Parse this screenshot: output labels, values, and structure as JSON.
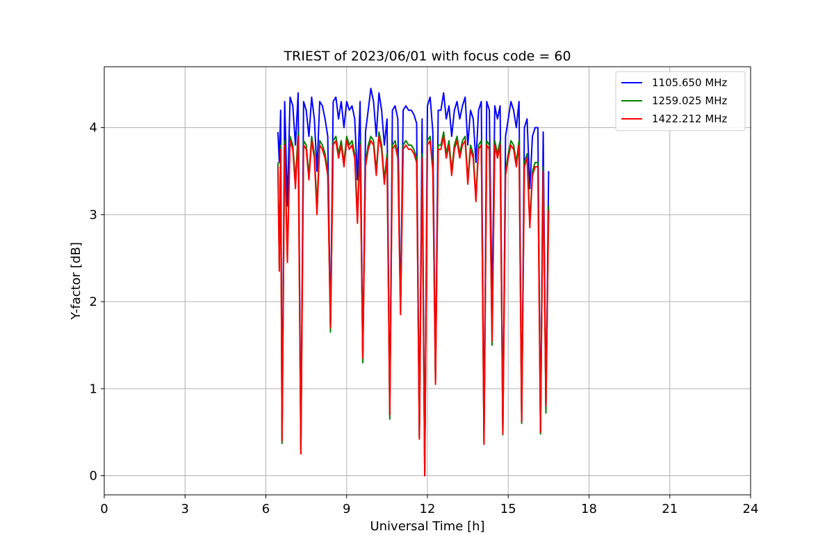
{
  "chart_data": {
    "type": "line",
    "title": "TRIEST of 2023/06/01 with focus code = 60",
    "xlabel": "Universal Time [h]",
    "ylabel": "Y-factor [dB]",
    "xlim": [
      0,
      24
    ],
    "ylim": [
      -0.22,
      4.7
    ],
    "xticks": [
      0,
      3,
      6,
      9,
      12,
      15,
      18,
      21,
      24
    ],
    "xtick_labels": [
      "0",
      "3",
      "6",
      "9",
      "12",
      "15",
      "18",
      "21",
      "24"
    ],
    "yticks": [
      0,
      1,
      2,
      3,
      4
    ],
    "ytick_labels": [
      "0",
      "1",
      "2",
      "3",
      "4"
    ],
    "grid": true,
    "legend_position": "upper-right",
    "series": [
      {
        "name": "1105.650 MHz",
        "color": "#0000ff",
        "x": [
          6.45,
          6.5,
          6.55,
          6.6,
          6.7,
          6.8,
          6.9,
          7.0,
          7.1,
          7.2,
          7.3,
          7.4,
          7.5,
          7.6,
          7.7,
          7.8,
          7.9,
          8.0,
          8.1,
          8.2,
          8.3,
          8.4,
          8.5,
          8.6,
          8.7,
          8.8,
          8.9,
          9.0,
          9.1,
          9.2,
          9.3,
          9.4,
          9.5,
          9.6,
          9.7,
          9.8,
          9.9,
          10.0,
          10.1,
          10.2,
          10.3,
          10.4,
          10.5,
          10.6,
          10.7,
          10.8,
          10.9,
          11.0,
          11.1,
          11.2,
          11.3,
          11.4,
          11.5,
          11.6,
          11.7,
          11.8,
          11.9,
          12.0,
          12.1,
          12.2,
          12.3,
          12.4,
          12.5,
          12.6,
          12.7,
          12.8,
          12.9,
          13.0,
          13.1,
          13.2,
          13.3,
          13.4,
          13.5,
          13.6,
          13.7,
          13.8,
          13.9,
          14.0,
          14.1,
          14.2,
          14.3,
          14.4,
          14.5,
          14.6,
          14.7,
          14.8,
          14.9,
          15.0,
          15.1,
          15.2,
          15.3,
          15.4,
          15.5,
          15.6,
          15.7,
          15.8,
          15.9,
          16.0,
          16.1,
          16.2,
          16.3,
          16.4,
          16.5
        ],
        "y": [
          3.95,
          3.6,
          4.2,
          0.4,
          4.3,
          3.1,
          4.35,
          4.25,
          3.8,
          4.4,
          0.3,
          4.3,
          4.2,
          3.9,
          4.35,
          4.1,
          3.5,
          4.3,
          4.25,
          4.1,
          3.9,
          1.7,
          4.3,
          4.35,
          4.1,
          4.3,
          4.0,
          4.3,
          4.2,
          4.25,
          4.1,
          3.4,
          4.3,
          1.3,
          3.95,
          4.2,
          4.45,
          4.3,
          3.9,
          4.4,
          4.2,
          3.8,
          4.1,
          0.7,
          4.2,
          4.25,
          4.1,
          1.9,
          4.2,
          4.25,
          4.2,
          4.2,
          4.15,
          4.05,
          0.45,
          4.1,
          0.0,
          4.25,
          4.35,
          3.95,
          1.1,
          4.2,
          4.2,
          4.4,
          4.1,
          4.25,
          3.9,
          4.2,
          4.3,
          4.1,
          4.25,
          4.35,
          3.8,
          4.2,
          4.1,
          3.6,
          4.2,
          4.3,
          0.4,
          4.3,
          4.2,
          1.9,
          4.25,
          4.1,
          4.25,
          0.5,
          3.9,
          4.1,
          4.3,
          4.2,
          4.0,
          4.3,
          0.62,
          4.0,
          4.1,
          3.3,
          3.9,
          4.0,
          4.0,
          0.5,
          3.95,
          0.75,
          3.5
        ]
      },
      {
        "name": "1259.025 MHz",
        "color": "#008000",
        "x": [
          6.45,
          6.5,
          6.55,
          6.6,
          6.7,
          6.8,
          6.9,
          7.0,
          7.1,
          7.2,
          7.3,
          7.4,
          7.5,
          7.6,
          7.7,
          7.8,
          7.9,
          8.0,
          8.1,
          8.2,
          8.3,
          8.4,
          8.5,
          8.6,
          8.7,
          8.8,
          8.9,
          9.0,
          9.1,
          9.2,
          9.3,
          9.4,
          9.5,
          9.6,
          9.7,
          9.8,
          9.9,
          10.0,
          10.1,
          10.2,
          10.3,
          10.4,
          10.5,
          10.6,
          10.7,
          10.8,
          10.9,
          11.0,
          11.1,
          11.2,
          11.3,
          11.4,
          11.5,
          11.6,
          11.7,
          11.8,
          11.9,
          12.0,
          12.1,
          12.2,
          12.3,
          12.4,
          12.5,
          12.6,
          12.7,
          12.8,
          12.9,
          13.0,
          13.1,
          13.2,
          13.3,
          13.4,
          13.5,
          13.6,
          13.7,
          13.8,
          13.9,
          14.0,
          14.1,
          14.2,
          14.3,
          14.4,
          14.5,
          14.6,
          14.7,
          14.8,
          14.9,
          15.0,
          15.1,
          15.2,
          15.3,
          15.4,
          15.5,
          15.6,
          15.7,
          15.8,
          15.9,
          16.0,
          16.1,
          16.2,
          16.3,
          16.4,
          16.5
        ],
        "y": [
          3.6,
          2.4,
          3.8,
          0.37,
          3.85,
          2.5,
          3.9,
          3.8,
          3.4,
          3.95,
          0.26,
          3.85,
          3.8,
          3.45,
          3.9,
          3.7,
          3.1,
          3.85,
          3.8,
          3.7,
          3.5,
          1.65,
          3.85,
          3.9,
          3.7,
          3.85,
          3.6,
          3.9,
          3.8,
          3.85,
          3.7,
          3.0,
          3.85,
          1.3,
          3.6,
          3.8,
          3.9,
          3.85,
          3.5,
          3.95,
          3.8,
          3.4,
          3.7,
          0.65,
          3.8,
          3.85,
          3.7,
          1.9,
          3.8,
          3.85,
          3.8,
          3.8,
          3.75,
          3.65,
          0.43,
          3.7,
          0.0,
          3.85,
          3.9,
          3.55,
          1.08,
          3.8,
          3.8,
          3.95,
          3.7,
          3.85,
          3.5,
          3.8,
          3.9,
          3.7,
          3.85,
          3.9,
          3.4,
          3.8,
          3.7,
          3.2,
          3.8,
          3.85,
          0.37,
          3.85,
          3.8,
          1.5,
          3.85,
          3.7,
          3.85,
          0.47,
          3.5,
          3.7,
          3.85,
          3.8,
          3.6,
          3.85,
          0.6,
          3.6,
          3.7,
          2.9,
          3.5,
          3.6,
          3.6,
          0.48,
          3.55,
          0.72,
          3.1
        ]
      },
      {
        "name": "1422.212 MHz",
        "color": "#ff0000",
        "x": [
          6.45,
          6.5,
          6.55,
          6.6,
          6.7,
          6.8,
          6.9,
          7.0,
          7.1,
          7.2,
          7.3,
          7.4,
          7.5,
          7.6,
          7.7,
          7.8,
          7.9,
          8.0,
          8.1,
          8.2,
          8.3,
          8.4,
          8.5,
          8.6,
          8.7,
          8.8,
          8.9,
          9.0,
          9.1,
          9.2,
          9.3,
          9.4,
          9.5,
          9.6,
          9.7,
          9.8,
          9.9,
          10.0,
          10.1,
          10.2,
          10.3,
          10.4,
          10.5,
          10.6,
          10.7,
          10.8,
          10.9,
          11.0,
          11.1,
          11.2,
          11.3,
          11.4,
          11.5,
          11.6,
          11.7,
          11.8,
          11.9,
          12.0,
          12.1,
          12.2,
          12.3,
          12.4,
          12.5,
          12.6,
          12.7,
          12.8,
          12.9,
          13.0,
          13.1,
          13.2,
          13.3,
          13.4,
          13.5,
          13.6,
          13.7,
          13.8,
          13.9,
          14.0,
          14.1,
          14.2,
          14.3,
          14.4,
          14.5,
          14.6,
          14.7,
          14.8,
          14.9,
          15.0,
          15.1,
          15.2,
          15.3,
          15.4,
          15.5,
          15.6,
          15.7,
          15.8,
          15.9,
          16.0,
          16.1,
          16.2,
          16.3,
          16.4,
          16.5
        ],
        "y": [
          3.55,
          2.35,
          3.75,
          0.4,
          3.8,
          2.45,
          3.85,
          3.75,
          3.3,
          3.9,
          0.25,
          3.8,
          3.75,
          3.4,
          3.85,
          3.65,
          3.0,
          3.8,
          3.75,
          3.65,
          3.45,
          1.7,
          3.8,
          3.85,
          3.65,
          3.8,
          3.55,
          3.85,
          3.75,
          3.8,
          3.65,
          2.9,
          3.8,
          1.35,
          3.55,
          3.75,
          3.85,
          3.8,
          3.45,
          3.9,
          3.75,
          3.35,
          3.65,
          0.7,
          3.75,
          3.8,
          3.65,
          1.85,
          3.75,
          3.8,
          3.75,
          3.75,
          3.7,
          3.6,
          0.42,
          3.65,
          0.0,
          3.8,
          3.85,
          3.5,
          1.05,
          3.75,
          3.75,
          3.9,
          3.65,
          3.8,
          3.45,
          3.75,
          3.85,
          3.65,
          3.8,
          3.85,
          3.35,
          3.75,
          3.65,
          3.15,
          3.75,
          3.8,
          0.36,
          3.8,
          3.75,
          1.55,
          3.8,
          3.65,
          3.8,
          0.48,
          3.45,
          3.65,
          3.8,
          3.75,
          3.55,
          3.8,
          0.62,
          3.55,
          3.65,
          2.85,
          3.45,
          3.55,
          3.55,
          0.5,
          3.5,
          0.8,
          3.05
        ]
      }
    ]
  }
}
